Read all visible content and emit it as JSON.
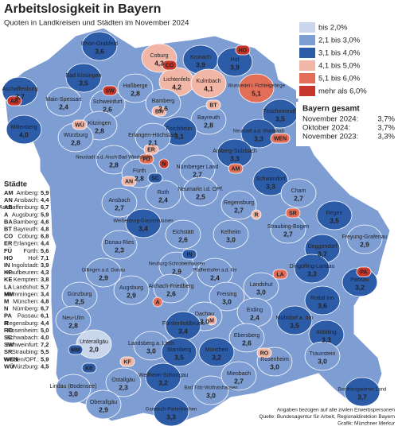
{
  "header": {
    "title": "Arbeitslosigkeit in Bayern",
    "subtitle": "Quoten in Landkreisen und Städten im November 2024"
  },
  "legend": [
    {
      "label": "bis      2,0%",
      "color": "#c9d6ec"
    },
    {
      "label": "2,1 bis 3,0%",
      "color": "#7d9dd3"
    },
    {
      "label": "3,1 bis 4,0%",
      "color": "#2c5ba8"
    },
    {
      "label": "4,1 bis 5,0%",
      "color": "#f2b6a6"
    },
    {
      "label": "5,1 bis 6,0%",
      "color": "#e26e58"
    },
    {
      "label": "mehr als 6,0%",
      "color": "#c6362a"
    }
  ],
  "bayern": {
    "title": "Bayern gesamt",
    "rows": [
      {
        "label": "November 2024:",
        "value": "3,7%"
      },
      {
        "label": "Oktober  2024:",
        "value": "3,7%"
      },
      {
        "label": "November 2023:",
        "value": "3,3%"
      }
    ]
  },
  "cities": {
    "title": "Städte",
    "rows": [
      {
        "abbr": "AM",
        "name": "Amberg:",
        "value": "5,9",
        "color": "#e26e58"
      },
      {
        "abbr": "AN",
        "name": "Ansbach:",
        "value": "4,4",
        "color": "#f2b6a6"
      },
      {
        "abbr": "AB",
        "name": "Aschaffenburg:",
        "value": "6,7",
        "color": "#c6362a"
      },
      {
        "abbr": "A",
        "name": "Augsburg:",
        "value": "5,9",
        "color": "#e26e58"
      },
      {
        "abbr": "BA",
        "name": "Bamberg:",
        "value": "4,6",
        "color": "#f2b6a6"
      },
      {
        "abbr": "BT",
        "name": "Bayreuth:",
        "value": "4,8",
        "color": "#f2b6a6"
      },
      {
        "abbr": "CO",
        "name": "Coburg:",
        "value": "6,8",
        "color": "#c6362a"
      },
      {
        "abbr": "ER",
        "name": "Erlangen:",
        "value": "4,4",
        "color": "#f2b6a6"
      },
      {
        "abbr": "FÜ",
        "name": "Fürth:",
        "value": "5,6",
        "color": "#e26e58"
      },
      {
        "abbr": "HO",
        "name": "Hof:",
        "value": "7,1",
        "color": "#c6362a"
      },
      {
        "abbr": "IN",
        "name": "Ingolstadt:",
        "value": "3,9",
        "color": "#2c5ba8"
      },
      {
        "abbr": "KF",
        "name": "Kaufbeuren:",
        "value": "4,3",
        "color": "#f2b6a6"
      },
      {
        "abbr": "KE",
        "name": "Kempten:",
        "value": "3,8",
        "color": "#2c5ba8"
      },
      {
        "abbr": "LA",
        "name": "Landshut:",
        "value": "5,7",
        "color": "#e26e58"
      },
      {
        "abbr": "MM",
        "name": "Memmingen:",
        "value": "3,4",
        "color": "#2c5ba8"
      },
      {
        "abbr": "M",
        "name": "München:",
        "value": "4,8",
        "color": "#f2b6a6"
      },
      {
        "abbr": "N",
        "name": "Nürnberg:",
        "value": "6,7",
        "color": "#c6362a"
      },
      {
        "abbr": "PA",
        "name": "Passau:",
        "value": "6,1",
        "color": "#c6362a"
      },
      {
        "abbr": "R",
        "name": "Regensburg:",
        "value": "4,4",
        "color": "#f2b6a6"
      },
      {
        "abbr": "RO",
        "name": "Rosenheim:",
        "value": "5,0",
        "color": "#f2b6a6"
      },
      {
        "abbr": "SC",
        "name": "Schwabach:",
        "value": "4,0",
        "color": "#2c5ba8"
      },
      {
        "abbr": "SW",
        "name": "Schweinfurt:",
        "value": "7,2",
        "color": "#c6362a"
      },
      {
        "abbr": "SR",
        "name": "Straubing:",
        "value": "5,5",
        "color": "#e26e58"
      },
      {
        "abbr": "WEN",
        "name": "Weiden/OPf.:",
        "value": "5,9",
        "color": "#e26e58"
      },
      {
        "abbr": "WÜ",
        "name": "Würzburg:",
        "value": "4,5",
        "color": "#f2b6a6"
      }
    ]
  },
  "regions": [
    {
      "name": "Rhön-Grabfeld",
      "value": "3,6",
      "color": "#2c5ba8"
    },
    {
      "name": "Bad Kissingen",
      "value": "3,5",
      "color": "#2c5ba8"
    },
    {
      "name": "Aschaffenburg",
      "value": "3,7",
      "color": "#2c5ba8"
    },
    {
      "name": "Miltenberg",
      "value": "4,0",
      "color": "#2c5ba8"
    },
    {
      "name": "Main-Spessart",
      "value": "2,4",
      "color": "#7d9dd3"
    },
    {
      "name": "Schweinfurt",
      "value": "2,6",
      "color": "#7d9dd3"
    },
    {
      "name": "Haßberge",
      "value": "2,8",
      "color": "#7d9dd3"
    },
    {
      "name": "Coburg",
      "value": "4,3",
      "color": "#f2b6a6"
    },
    {
      "name": "Kronach",
      "value": "3,9",
      "color": "#2c5ba8"
    },
    {
      "name": "Lichtenfels",
      "value": "4,2",
      "color": "#f2b6a6"
    },
    {
      "name": "Kulmbach",
      "value": "4,1",
      "color": "#f2b6a6"
    },
    {
      "name": "Hof",
      "value": "3,9",
      "color": "#2c5ba8"
    },
    {
      "name": "Wunsiedel i. Fichtelgebirge",
      "value": "5,1",
      "color": "#e26e58"
    },
    {
      "name": "Bamberg",
      "value": "2,6",
      "color": "#7d9dd3"
    },
    {
      "name": "Bayreuth",
      "value": "2,8",
      "color": "#7d9dd3"
    },
    {
      "name": "Tirschenreuth",
      "value": "3,5",
      "color": "#2c5ba8"
    },
    {
      "name": "Kitzingen",
      "value": "2,8",
      "color": "#7d9dd3"
    },
    {
      "name": "Würzburg",
      "value": "2,8",
      "color": "#7d9dd3"
    },
    {
      "name": "Forchheim",
      "value": "3,1",
      "color": "#2c5ba8"
    },
    {
      "name": "Erlangen-Höchstadt",
      "value": "2,1",
      "color": "#7d9dd3"
    },
    {
      "name": "Neustadt a.d. Waldnaab",
      "value": "3,3",
      "color": "#2c5ba8"
    },
    {
      "name": "Neustadt a.d. Aisch-Bad Windsheim",
      "value": "2,8",
      "color": "#7d9dd3"
    },
    {
      "name": "Fürth",
      "value": "2,8",
      "color": "#7d9dd3"
    },
    {
      "name": "Nürnberger Land",
      "value": "2,7",
      "color": "#7d9dd3"
    },
    {
      "name": "Amberg-Sulzbach",
      "value": "3,3",
      "color": "#2c5ba8"
    },
    {
      "name": "Schwandorf",
      "value": "3,3",
      "color": "#2c5ba8"
    },
    {
      "name": "Ansbach",
      "value": "2,7",
      "color": "#7d9dd3"
    },
    {
      "name": "Roth",
      "value": "2,4",
      "color": "#7d9dd3"
    },
    {
      "name": "Neumarkt i.d. OPf.",
      "value": "2,5",
      "color": "#7d9dd3"
    },
    {
      "name": "Cham",
      "value": "2,7",
      "color": "#7d9dd3"
    },
    {
      "name": "Regensburg",
      "value": "2,7",
      "color": "#7d9dd3"
    },
    {
      "name": "Weißenburg-Gunzenhausen",
      "value": "3,4",
      "color": "#2c5ba8"
    },
    {
      "name": "Eichstätt",
      "value": "2,6",
      "color": "#7d9dd3"
    },
    {
      "name": "Kelheim",
      "value": "3,0",
      "color": "#7d9dd3"
    },
    {
      "name": "Straubing-Bogen",
      "value": "2,7",
      "color": "#7d9dd3"
    },
    {
      "name": "Regen",
      "value": "3,5",
      "color": "#2c5ba8"
    },
    {
      "name": "Freyung-Grafenau",
      "value": "2,9",
      "color": "#7d9dd3"
    },
    {
      "name": "Deggendorf",
      "value": "3,7",
      "color": "#2c5ba8"
    },
    {
      "name": "Donau-Ries",
      "value": "2,3",
      "color": "#7d9dd3"
    },
    {
      "name": "Passau",
      "value": "3,2",
      "color": "#2c5ba8"
    },
    {
      "name": "Dingolfing-Landau",
      "value": "3,3",
      "color": "#2c5ba8"
    },
    {
      "name": "Landshut",
      "value": "3,0",
      "color": "#7d9dd3"
    },
    {
      "name": "Dillingen a.d. Donau",
      "value": "2,9",
      "color": "#7d9dd3"
    },
    {
      "name": "Neuburg-Schrobenhausen",
      "value": "2,9",
      "color": "#7d9dd3"
    },
    {
      "name": "Pfaffenhofen a.d. Ilm",
      "value": "2,4",
      "color": "#7d9dd3"
    },
    {
      "name": "Günzburg",
      "value": "2,5",
      "color": "#7d9dd3"
    },
    {
      "name": "Augsburg",
      "value": "2,9",
      "color": "#7d9dd3"
    },
    {
      "name": "Aichach-Friedberg",
      "value": "2,6",
      "color": "#7d9dd3"
    },
    {
      "name": "Freising",
      "value": "3,0",
      "color": "#7d9dd3"
    },
    {
      "name": "Rottal Inn",
      "value": "3,6",
      "color": "#2c5ba8"
    },
    {
      "name": "Neu-Ulm",
      "value": "2,8",
      "color": "#7d9dd3"
    },
    {
      "name": "Dachau",
      "value": "3,0",
      "color": "#7d9dd3"
    },
    {
      "name": "Erding",
      "value": "2,4",
      "color": "#7d9dd3"
    },
    {
      "name": "Mühldorf a. Inn",
      "value": "3,5",
      "color": "#2c5ba8"
    },
    {
      "name": "Altötting",
      "value": "3,3",
      "color": "#2c5ba8"
    },
    {
      "name": "Fürstenfeldbruck",
      "value": "3,4",
      "color": "#2c5ba8"
    },
    {
      "name": "Unterallgäu",
      "value": "2,0",
      "color": "#c9d6ec"
    },
    {
      "name": "Landsberg a. Lech",
      "value": "3,0",
      "color": "#7d9dd3"
    },
    {
      "name": "Starnberg",
      "value": "3,5",
      "color": "#2c5ba8"
    },
    {
      "name": "München",
      "value": "3,2",
      "color": "#2c5ba8"
    },
    {
      "name": "Ebersberg",
      "value": "2,6",
      "color": "#7d9dd3"
    },
    {
      "name": "Ostallgäu",
      "value": "2,3",
      "color": "#7d9dd3"
    },
    {
      "name": "Weilheim-Schongau",
      "value": "3,2",
      "color": "#2c5ba8"
    },
    {
      "name": "Bad Tölz-Wolfratshausen",
      "value": "3,0",
      "color": "#7d9dd3"
    },
    {
      "name": "Miesbach",
      "value": "2,7",
      "color": "#7d9dd3"
    },
    {
      "name": "Rosenheim",
      "value": "3,0",
      "color": "#7d9dd3"
    },
    {
      "name": "Traunstein",
      "value": "3,0",
      "color": "#7d9dd3"
    },
    {
      "name": "Lindau (Bodensee)",
      "value": "3,0",
      "color": "#7d9dd3"
    },
    {
      "name": "Oberallgäu",
      "value": "2,9",
      "color": "#7d9dd3"
    },
    {
      "name": "Garmisch-Partenkirchen",
      "value": "3,3",
      "color": "#2c5ba8"
    },
    {
      "name": "Berchtesgadener Land",
      "value": "3,7",
      "color": "#2c5ba8"
    }
  ],
  "footer": [
    "Angaben bezogen auf alle zivilen Erwerbspersonen",
    "Quelle: Bundesagentur für Arbeit, Regionaldirektion Bayern",
    "Grafik: Münchner Merkur"
  ]
}
